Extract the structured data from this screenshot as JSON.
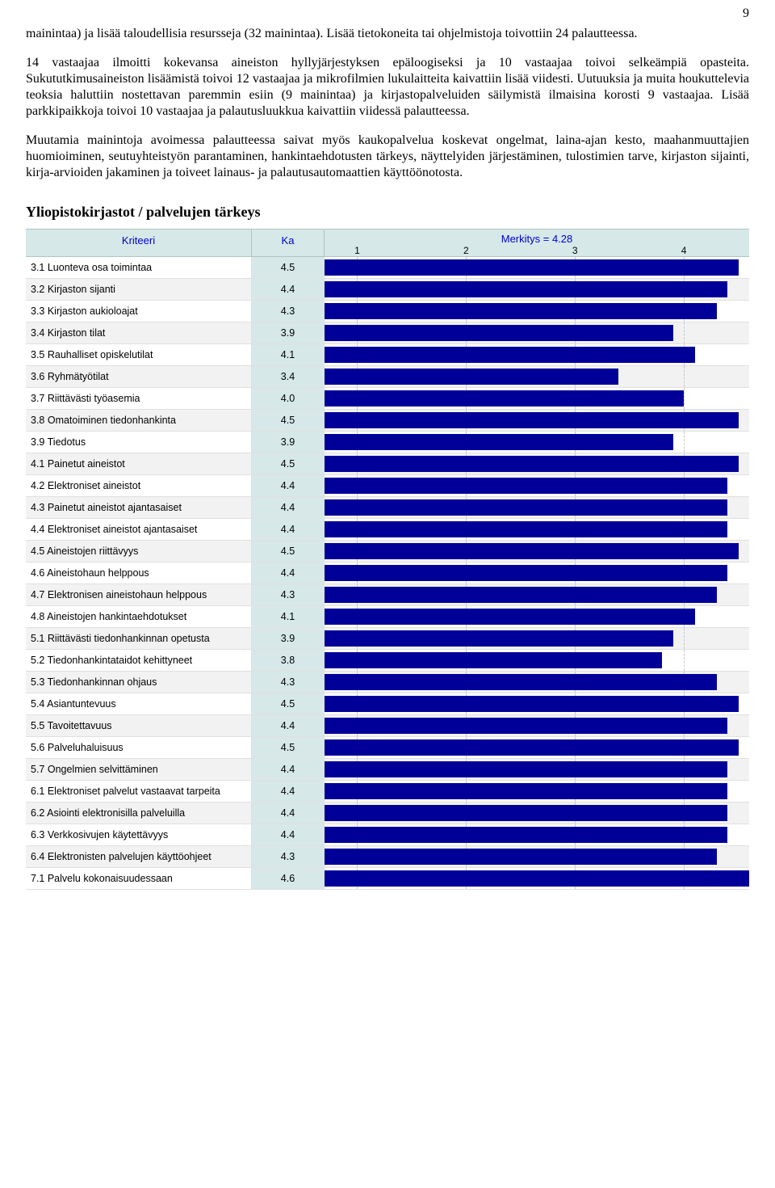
{
  "page_number": "9",
  "paragraphs": {
    "p1": "mainintaa) ja lisää taloudellisia resursseja (32 mainintaa). Lisää tietokoneita tai ohjelmistoja toivottiin 24 palautteessa.",
    "p2": "14 vastaajaa ilmoitti kokevansa aineiston hyllyjärjestyksen epäloogiseksi ja 10 vastaajaa toivoi selkeämpiä opasteita. Sukututkimusaineiston lisäämistä toivoi 12 vastaajaa ja mikrofilmien lukulaitteita kaivattiin lisää viidesti. Uutuuksia ja muita houkuttelevia teoksia haluttiin nostettavan paremmin esiin (9 mainintaa) ja kirjastopalveluiden säilymistä ilmaisina korosti 9 vastaajaa. Lisää parkkipaikkoja toivoi 10 vastaajaa ja palautusluukkua kaivattiin viidessä palautteessa.",
    "p3": "Muutamia mainintoja avoimessa palautteessa saivat myös kaukopalvelua koskevat ongelmat, laina-ajan kesto, maahanmuuttajien huomioiminen, seutuyhteistyön parantaminen, hankintaehdotusten tärkeys, näyttelyiden järjestäminen, tulostimien tarve, kirjaston sijainti, kirja-arvioiden jakaminen ja toiveet lainaus- ja palautusautomaattien käyttöönotosta."
  },
  "section_heading": "Yliopistokirjastot / palvelujen tärkeys",
  "chart": {
    "type": "bar",
    "header_criteria": "Kriteeri",
    "header_ka": "Ka",
    "header_scale_title": "Merkitys = 4.28",
    "scale_min": 0.7,
    "scale_max": 4.6,
    "ticks": [
      1,
      2,
      3,
      4
    ],
    "bar_color": "#000099",
    "ka_bg": "#d6e8e8",
    "header_bg": "#d6e8e8",
    "header_fg": "#0000cc",
    "grid_color": "#c8c8c8",
    "row_alt_bg": "#f2f2f2",
    "font_family": "Verdana",
    "font_size": 12.5,
    "rows": [
      {
        "label": "3.1 Luonteva osa toimintaa",
        "ka": "4.5"
      },
      {
        "label": "3.2 Kirjaston sijanti",
        "ka": "4.4"
      },
      {
        "label": "3.3 Kirjaston aukioloajat",
        "ka": "4.3"
      },
      {
        "label": "3.4 Kirjaston tilat",
        "ka": "3.9"
      },
      {
        "label": "3.5 Rauhalliset opiskelutilat",
        "ka": "4.1"
      },
      {
        "label": "3.6 Ryhmätyötilat",
        "ka": "3.4"
      },
      {
        "label": "3.7 Riittävästi työasemia",
        "ka": "4.0"
      },
      {
        "label": "3.8 Omatoiminen tiedonhankinta",
        "ka": "4.5"
      },
      {
        "label": "3.9 Tiedotus",
        "ka": "3.9"
      },
      {
        "label": "4.1 Painetut aineistot",
        "ka": "4.5"
      },
      {
        "label": "4.2 Elektroniset aineistot",
        "ka": "4.4"
      },
      {
        "label": "4.3 Painetut aineistot ajantasaiset",
        "ka": "4.4"
      },
      {
        "label": "4.4 Elektroniset aineistot ajantasaiset",
        "ka": "4.4"
      },
      {
        "label": "4.5 Aineistojen riittävyys",
        "ka": "4.5"
      },
      {
        "label": "4.6 Aineistohaun helppous",
        "ka": "4.4"
      },
      {
        "label": "4.7 Elektronisen aineistohaun helppous",
        "ka": "4.3"
      },
      {
        "label": "4.8 Aineistojen hankintaehdotukset",
        "ka": "4.1"
      },
      {
        "label": "5.1 Riittävästi tiedonhankinnan opetusta",
        "ka": "3.9"
      },
      {
        "label": "5.2 Tiedonhankintataidot kehittyneet",
        "ka": "3.8"
      },
      {
        "label": "5.3 Tiedonhankinnan ohjaus",
        "ka": "4.3"
      },
      {
        "label": "5.4 Asiantuntevuus",
        "ka": "4.5"
      },
      {
        "label": "5.5 Tavoitettavuus",
        "ka": "4.4"
      },
      {
        "label": "5.6 Palveluhaluisuus",
        "ka": "4.5"
      },
      {
        "label": "5.7 Ongelmien selvittäminen",
        "ka": "4.4"
      },
      {
        "label": "6.1 Elektroniset palvelut vastaavat tarpeita",
        "ka": "4.4"
      },
      {
        "label": "6.2 Asiointi elektronisilla palveluilla",
        "ka": "4.4"
      },
      {
        "label": "6.3 Verkkosivujen käytettävyys",
        "ka": "4.4"
      },
      {
        "label": "6.4 Elektronisten palvelujen käyttöohjeet",
        "ka": "4.3"
      },
      {
        "label": "7.1 Palvelu kokonaisuudessaan",
        "ka": "4.6"
      }
    ]
  }
}
